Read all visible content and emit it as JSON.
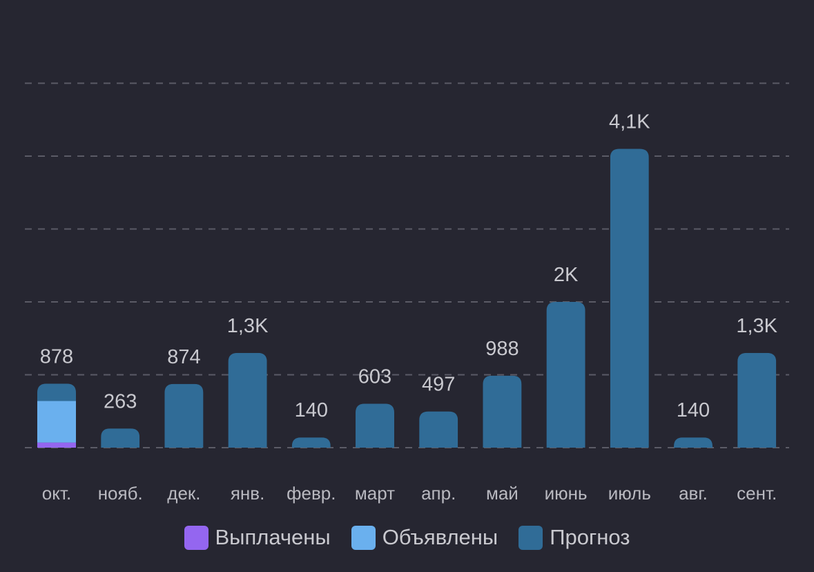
{
  "chart_data": {
    "type": "bar",
    "categories": [
      "окт.",
      "нояб.",
      "дек.",
      "янв.",
      "февр.",
      "март",
      "апр.",
      "май",
      "июнь",
      "июль",
      "авг.",
      "сент."
    ],
    "series": [
      {
        "name": "Выплачены",
        "color": "#9466f0",
        "values": [
          70,
          0,
          0,
          0,
          0,
          0,
          0,
          0,
          0,
          0,
          0,
          0
        ]
      },
      {
        "name": "Объявлены",
        "color": "#6ab0ee",
        "values": [
          570,
          0,
          0,
          0,
          0,
          0,
          0,
          0,
          0,
          0,
          0,
          0
        ]
      },
      {
        "name": "Прогноз",
        "color": "#306c97",
        "values": [
          238,
          263,
          874,
          1300,
          140,
          603,
          497,
          988,
          2000,
          4100,
          140,
          1300
        ]
      }
    ],
    "totals": [
      878,
      263,
      874,
      1300,
      140,
      603,
      497,
      988,
      2000,
      4100,
      140,
      1300
    ],
    "total_labels": [
      "878",
      "263",
      "874",
      "1,3K",
      "140",
      "603",
      "497",
      "988",
      "2K",
      "4,1K",
      "140",
      "1,3K"
    ],
    "ylim": [
      0,
      5000
    ],
    "grid": true,
    "legend_position": "bottom",
    "background": "#262631"
  }
}
